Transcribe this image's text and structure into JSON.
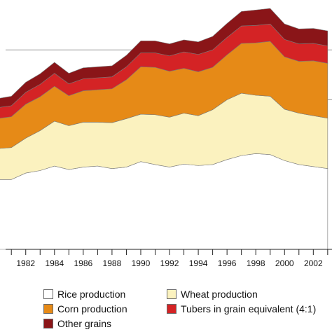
{
  "chart_data": {
    "type": "area",
    "stacked": true,
    "x": [
      1980,
      1981,
      1982,
      1983,
      1984,
      1985,
      1986,
      1987,
      1988,
      1989,
      1990,
      1991,
      1992,
      1993,
      1994,
      1995,
      1996,
      1997,
      1998,
      1999,
      2000,
      2001,
      2002,
      2003
    ],
    "xtick_labels": [
      "1982",
      "1984",
      "1986",
      "1988",
      "1990",
      "1992",
      "1994",
      "1996",
      "1998",
      "2000",
      "2002"
    ],
    "xlim": [
      1980.6,
      2003.3
    ],
    "ylim": [
      0,
      500
    ],
    "gridlines": [
      300,
      400
    ],
    "grid": true,
    "legend_placement": "bottom",
    "series": [
      {
        "name": "Rice production",
        "color": "#ffffff",
        "values": [
          140,
          140,
          153,
          158,
          167,
          160,
          165,
          167,
          162,
          165,
          176,
          170,
          165,
          171,
          168,
          170,
          180,
          188,
          192,
          190,
          178,
          170,
          166,
          162
        ]
      },
      {
        "name": "Wheat production",
        "color": "#fbf2bf",
        "values": [
          62,
          64,
          70,
          80,
          90,
          88,
          90,
          88,
          92,
          97,
          95,
          100,
          100,
          102,
          100,
          110,
          120,
          125,
          117,
          117,
          103,
          103,
          102,
          101
        ]
      },
      {
        "name": "Corn production",
        "color": "#e68a17",
        "values": [
          60,
          62,
          68,
          68,
          70,
          60,
          63,
          65,
          68,
          78,
          95,
          95,
          92,
          90,
          88,
          85,
          90,
          100,
          105,
          110,
          105,
          104,
          110,
          110
        ]
      },
      {
        "name": "Tubers in grain equivalent (4:1)",
        "color": "#d42325",
        "values": [
          22,
          22,
          24,
          25,
          26,
          24,
          24,
          24,
          24,
          26,
          28,
          29,
          31,
          33,
          35,
          35,
          35,
          35,
          35,
          35,
          35,
          35,
          35,
          35
        ]
      },
      {
        "name": "Other grains",
        "color": "#8a1518",
        "values": [
          18,
          19,
          20,
          21,
          22,
          21,
          22,
          22,
          22,
          23,
          24,
          24,
          24,
          24,
          25,
          27,
          28,
          29,
          31,
          31,
          31,
          30,
          30,
          30
        ]
      }
    ]
  }
}
